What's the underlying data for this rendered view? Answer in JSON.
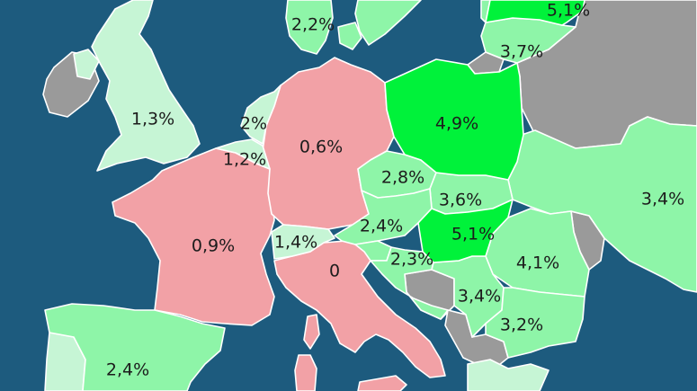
{
  "map": {
    "colors": {
      "sea": "#1d5b7e",
      "no_data": "#9a9a9a",
      "low_pink": "#f2a1a6",
      "pale_green": "#c6f5d5",
      "mid_green": "#8ef5a8",
      "high_green": "#00f23a"
    },
    "countries": [
      {
        "id": "uk",
        "label": "1,3%"
      },
      {
        "id": "ireland",
        "label": ""
      },
      {
        "id": "northern-ireland",
        "label": ""
      },
      {
        "id": "denmark",
        "label": "2,2%"
      },
      {
        "id": "sweden",
        "label": ""
      },
      {
        "id": "lithuania",
        "label": "5,1%"
      },
      {
        "id": "latvia-top",
        "label": ""
      },
      {
        "id": "belarus-area",
        "label": "3,7%"
      },
      {
        "id": "netherlands",
        "label": "2%"
      },
      {
        "id": "belgium",
        "label": "1,2%"
      },
      {
        "id": "germany",
        "label": "0,6%"
      },
      {
        "id": "poland",
        "label": "4,9%"
      },
      {
        "id": "russia-grey",
        "label": ""
      },
      {
        "id": "ukraine",
        "label": "3,4%"
      },
      {
        "id": "czechia",
        "label": "2,8%"
      },
      {
        "id": "slovakia",
        "label": "3,6%"
      },
      {
        "id": "austria",
        "label": "2,4%"
      },
      {
        "id": "hungary",
        "label": "5,1%"
      },
      {
        "id": "switzerland",
        "label": "1,4%"
      },
      {
        "id": "france",
        "label": "0,9%"
      },
      {
        "id": "italy",
        "label": "0"
      },
      {
        "id": "slovenia",
        "label": ""
      },
      {
        "id": "croatia",
        "label": "2,3%"
      },
      {
        "id": "romania",
        "label": "4,1%"
      },
      {
        "id": "moldova",
        "label": ""
      },
      {
        "id": "serbia",
        "label": "3,4%"
      },
      {
        "id": "bulgaria",
        "label": "3,2%"
      },
      {
        "id": "bosnia",
        "label": ""
      },
      {
        "id": "montenegro-albania",
        "label": ""
      },
      {
        "id": "greece",
        "label": ""
      },
      {
        "id": "spain",
        "label": "2,4%"
      },
      {
        "id": "portugal",
        "label": ""
      },
      {
        "id": "sardinia",
        "label": ""
      },
      {
        "id": "corsica",
        "label": ""
      }
    ]
  }
}
